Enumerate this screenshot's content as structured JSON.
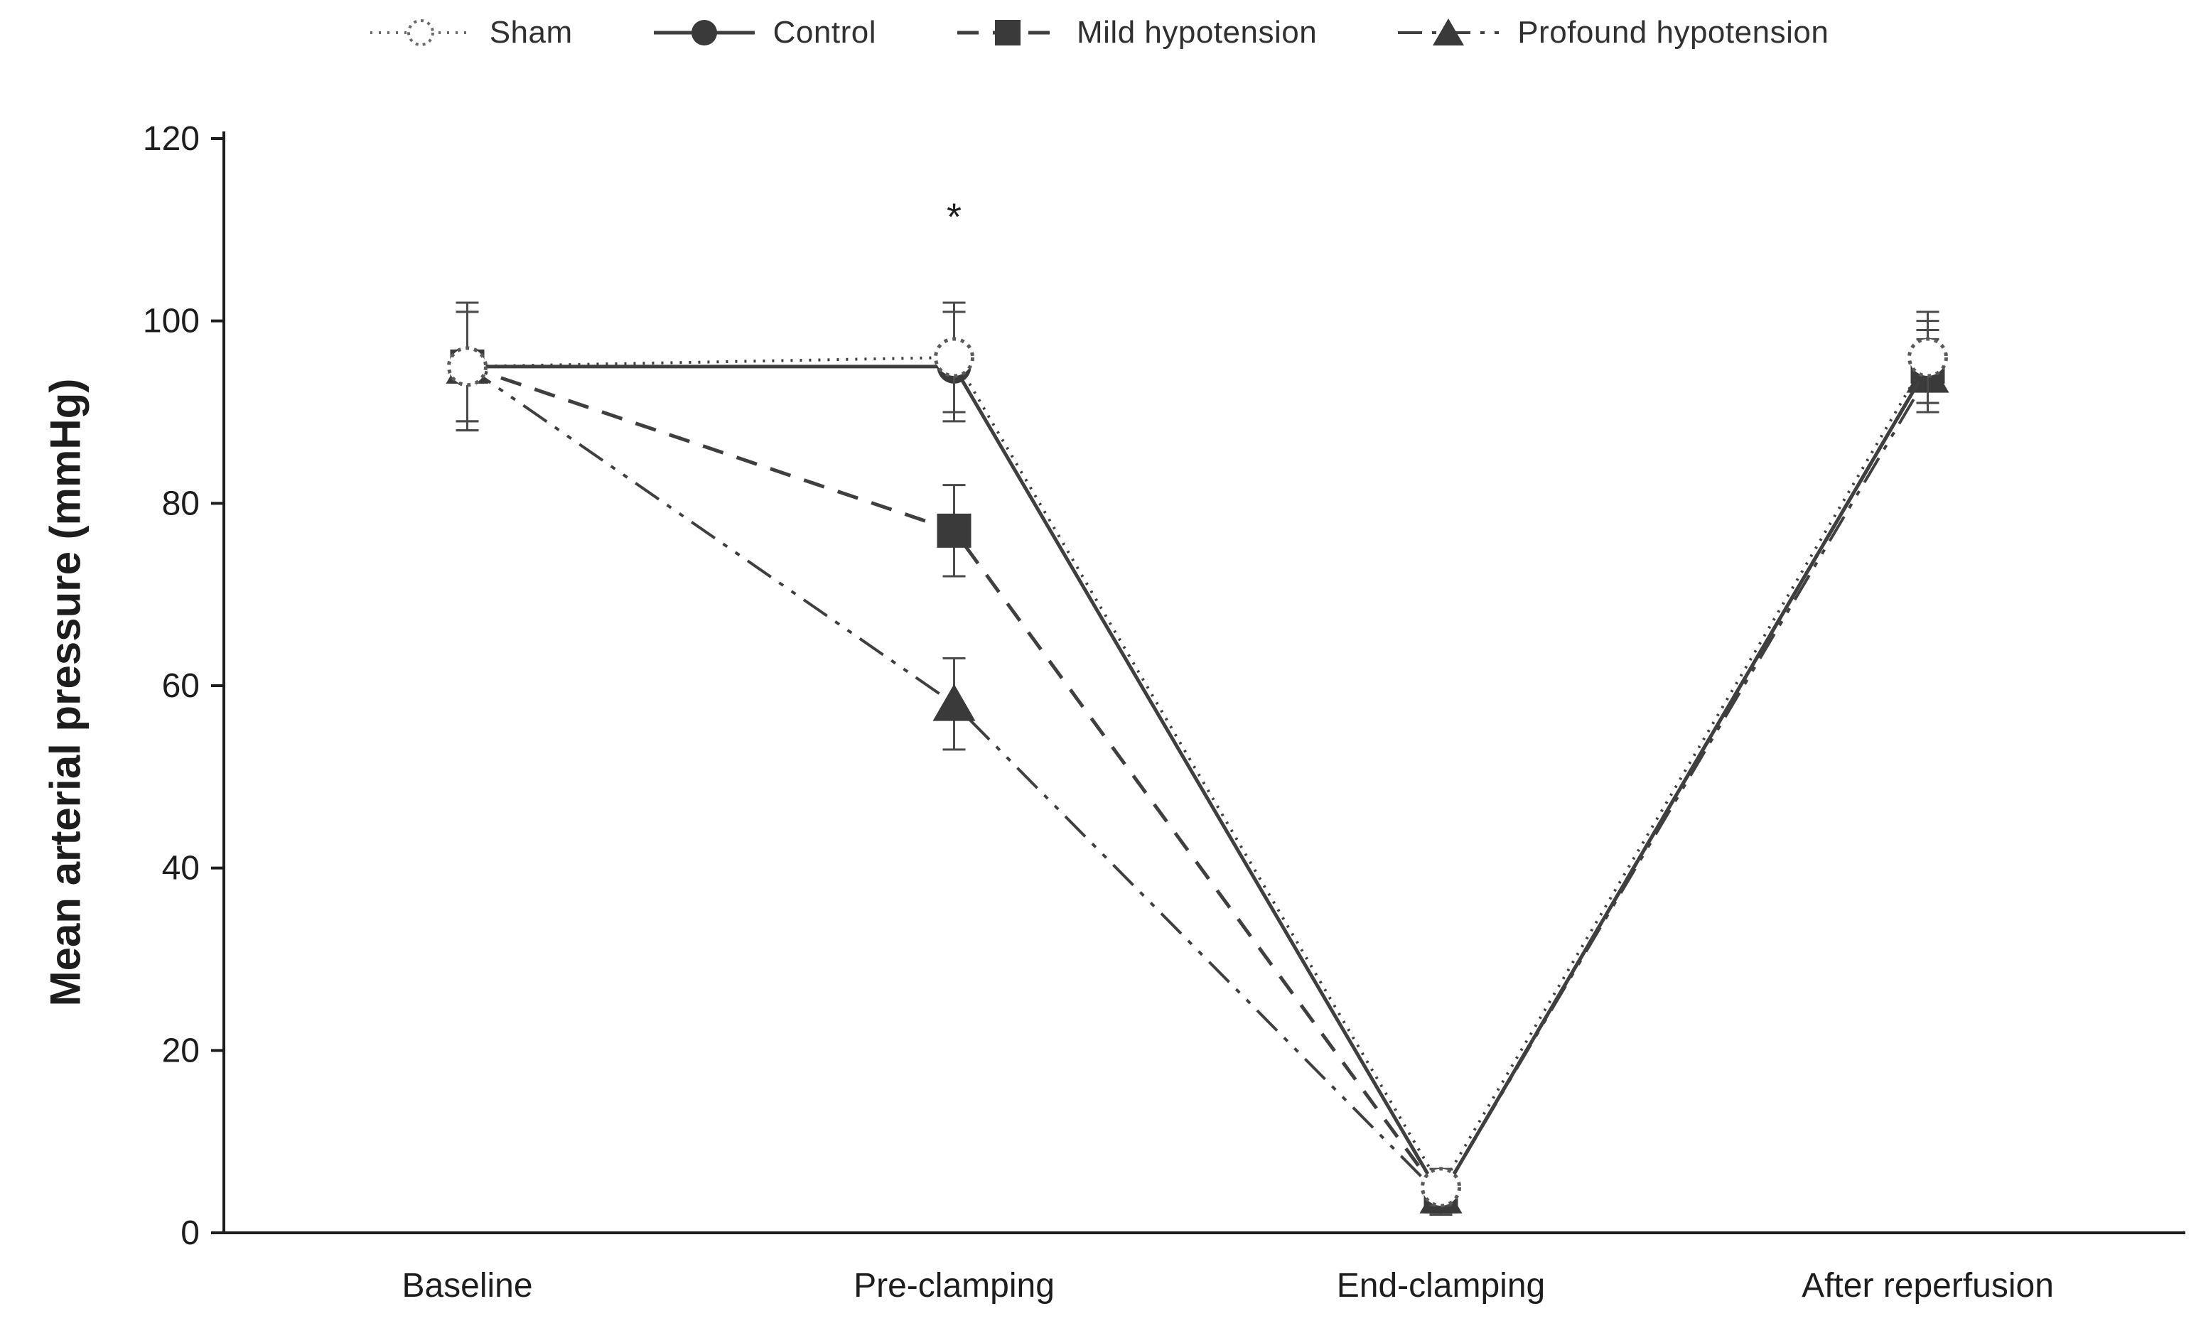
{
  "chart_data": {
    "type": "line",
    "title": "",
    "xlabel": "",
    "ylabel": "Mean arterial pressure (mmHg)",
    "categories": [
      "Baseline",
      "Pre-clamping",
      "End-clamping",
      "After reperfusion"
    ],
    "ylim": [
      0,
      120
    ],
    "yticks": [
      0,
      20,
      40,
      60,
      80,
      100,
      120
    ],
    "grid": false,
    "legend_position": "top",
    "line_color": "#3f3f3f",
    "marker_color": "#3a3a3a",
    "annotation": {
      "text": "*",
      "category_index": 1,
      "y": 110
    },
    "series": [
      {
        "name": "Sham",
        "marker": "open-circle",
        "line": "dotted",
        "values": [
          95,
          96,
          5,
          96
        ],
        "errors": [
          7,
          6,
          2,
          5
        ]
      },
      {
        "name": "Control",
        "marker": "filled-circle",
        "line": "solid",
        "values": [
          95,
          95,
          4,
          95
        ],
        "errors": [
          7,
          6,
          2,
          5
        ]
      },
      {
        "name": "Mild hypotension",
        "marker": "filled-square",
        "line": "dashed",
        "values": [
          95,
          77,
          4,
          95
        ],
        "errors": [
          6,
          5,
          2,
          4
        ]
      },
      {
        "name": "Profound hypotension",
        "marker": "filled-triangle",
        "line": "dashdotdot",
        "values": [
          95,
          58,
          4,
          94
        ],
        "errors": [
          6,
          5,
          2,
          4
        ]
      }
    ]
  }
}
